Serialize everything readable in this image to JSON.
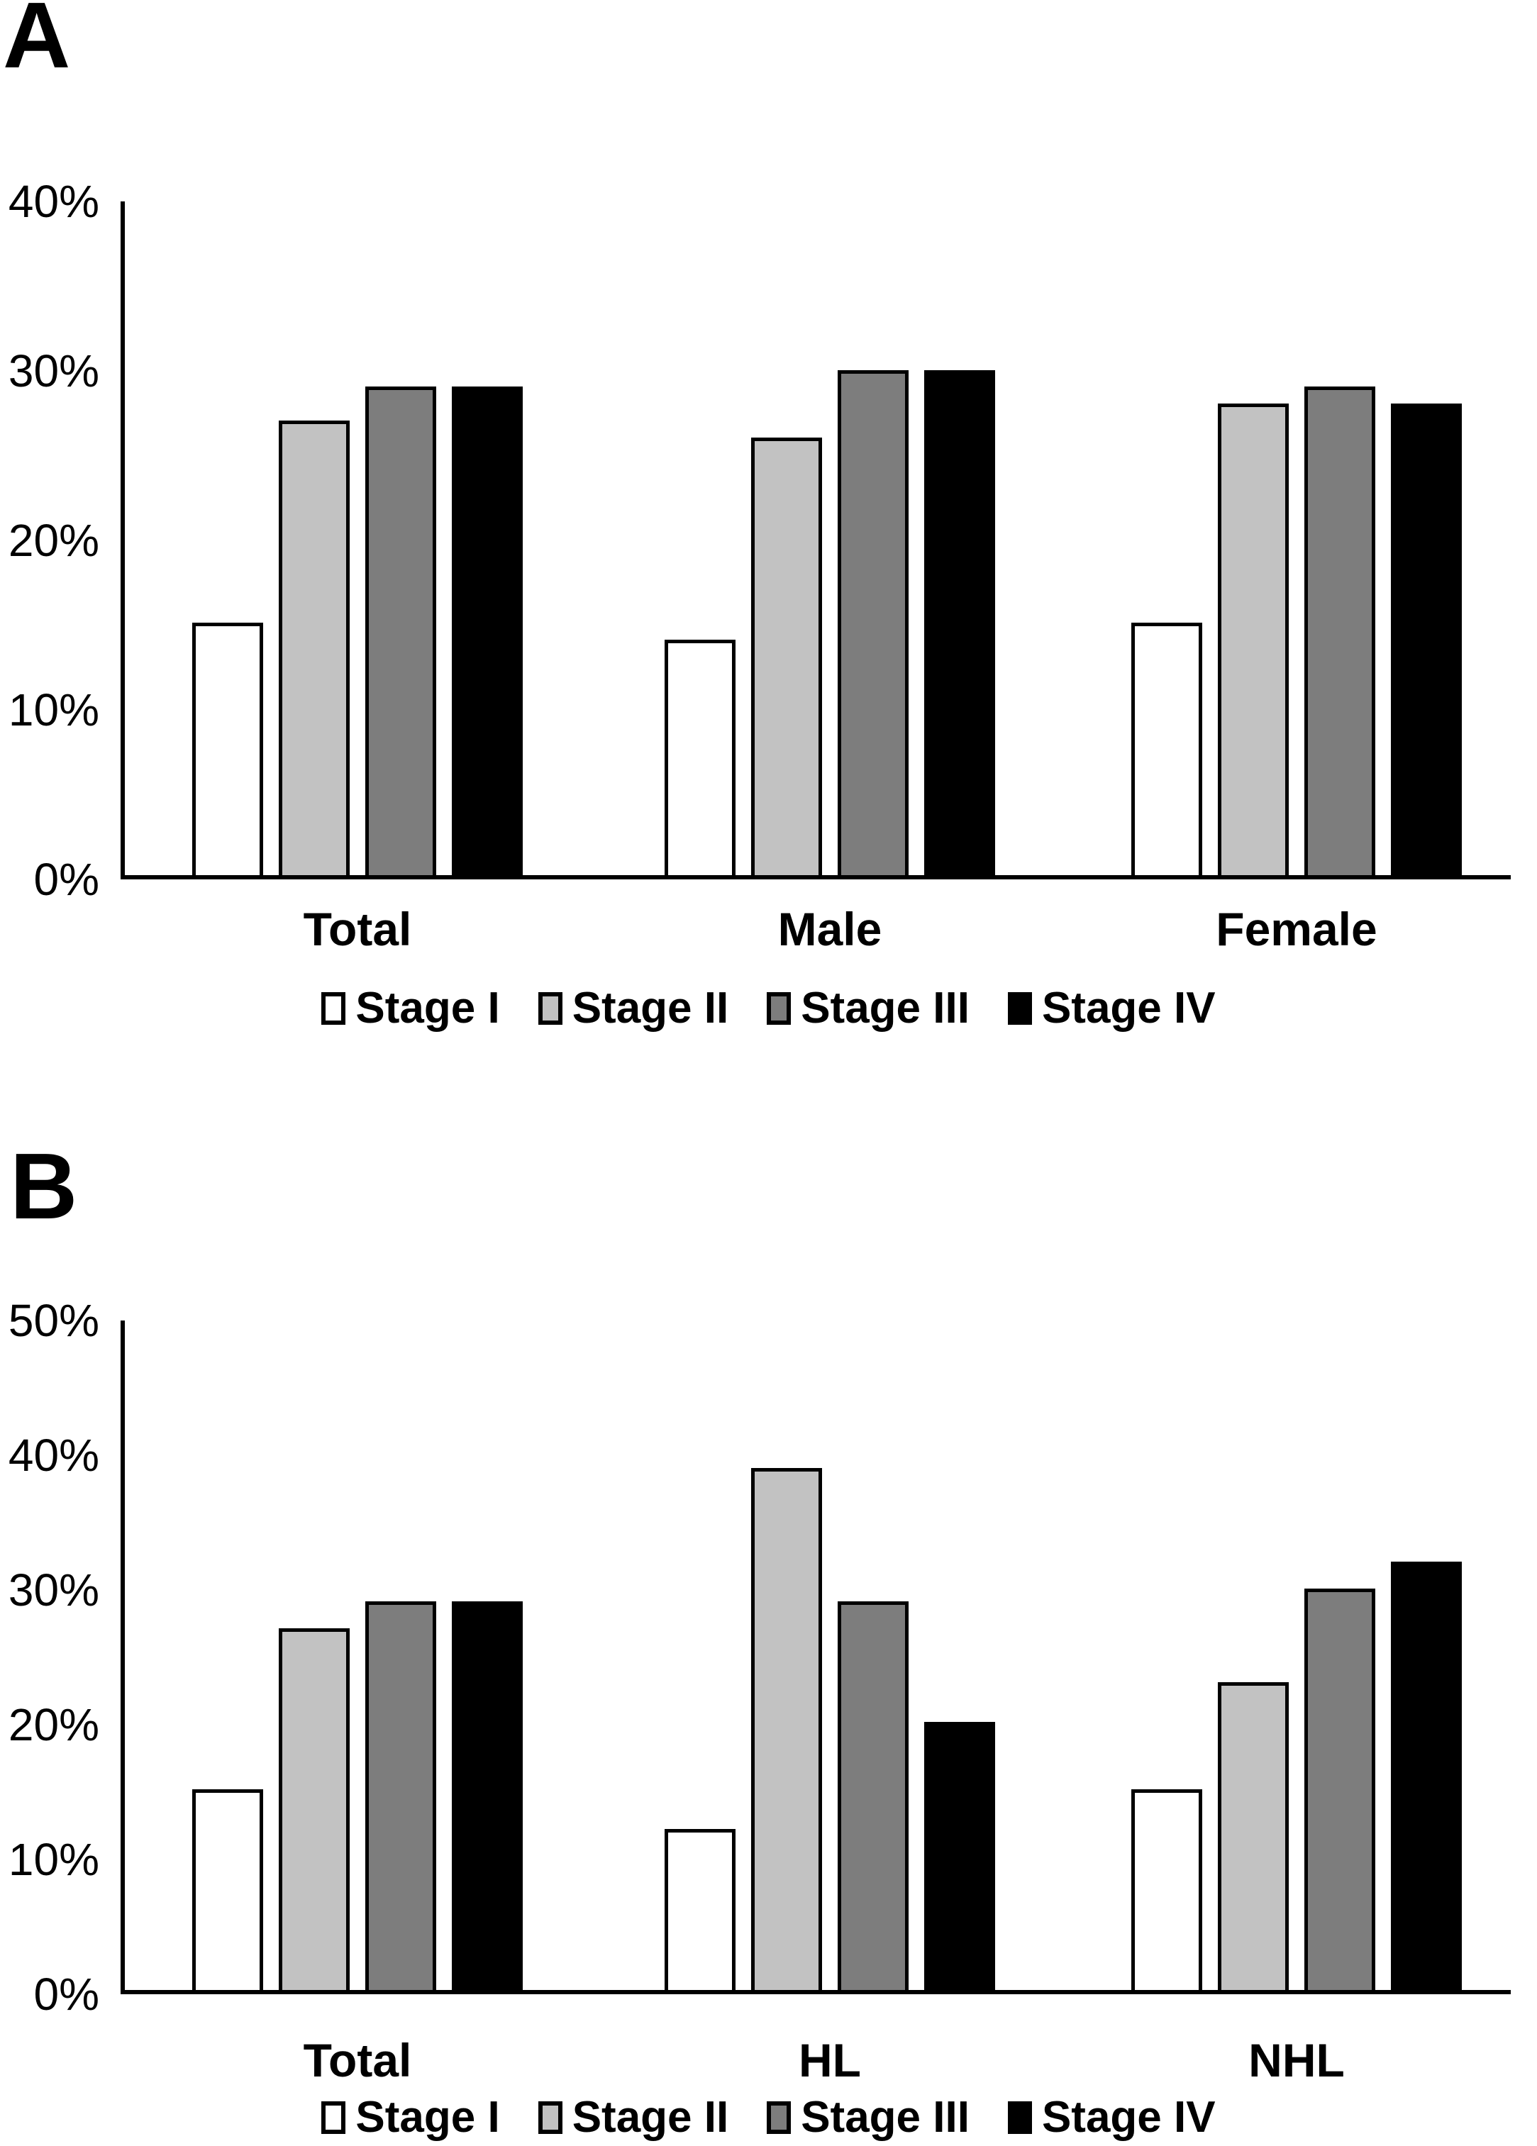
{
  "page": {
    "background": "#ffffff",
    "text_color": "#000000"
  },
  "chart_data": [
    {
      "type": "bar",
      "panel": "A",
      "categories": [
        "Total",
        "Male",
        "Female"
      ],
      "series": [
        {
          "name": "Stage I",
          "color": "#ffffff",
          "values": [
            15,
            14,
            15
          ]
        },
        {
          "name": "Stage II",
          "color": "#c2c2c2",
          "values": [
            27,
            26,
            28
          ]
        },
        {
          "name": "Stage III",
          "color": "#7d7d7d",
          "values": [
            29,
            30,
            29
          ]
        },
        {
          "name": "Stage IV",
          "color": "#000000",
          "values": [
            29,
            30,
            28
          ]
        }
      ],
      "ylim": [
        0,
        40
      ],
      "ytick_labels": [
        "40%",
        "30%",
        "20%",
        "10%",
        "0%"
      ],
      "xlabel": "",
      "ylabel": "",
      "grid": false,
      "legend_position": "bottom"
    },
    {
      "type": "bar",
      "panel": "B",
      "categories": [
        "Total",
        "HL",
        "NHL"
      ],
      "series": [
        {
          "name": "Stage I",
          "color": "#ffffff",
          "values": [
            15,
            12,
            15
          ]
        },
        {
          "name": "Stage II",
          "color": "#c2c2c2",
          "values": [
            27,
            39,
            23
          ]
        },
        {
          "name": "Stage III",
          "color": "#7d7d7d",
          "values": [
            29,
            29,
            30
          ]
        },
        {
          "name": "Stage IV",
          "color": "#000000",
          "values": [
            29,
            20,
            32
          ]
        }
      ],
      "ylim": [
        0,
        50
      ],
      "ytick_labels": [
        "50%",
        "40%",
        "30%",
        "20%",
        "10%",
        "0%"
      ],
      "xlabel": "",
      "ylabel": "",
      "grid": false,
      "legend_position": "bottom"
    }
  ]
}
